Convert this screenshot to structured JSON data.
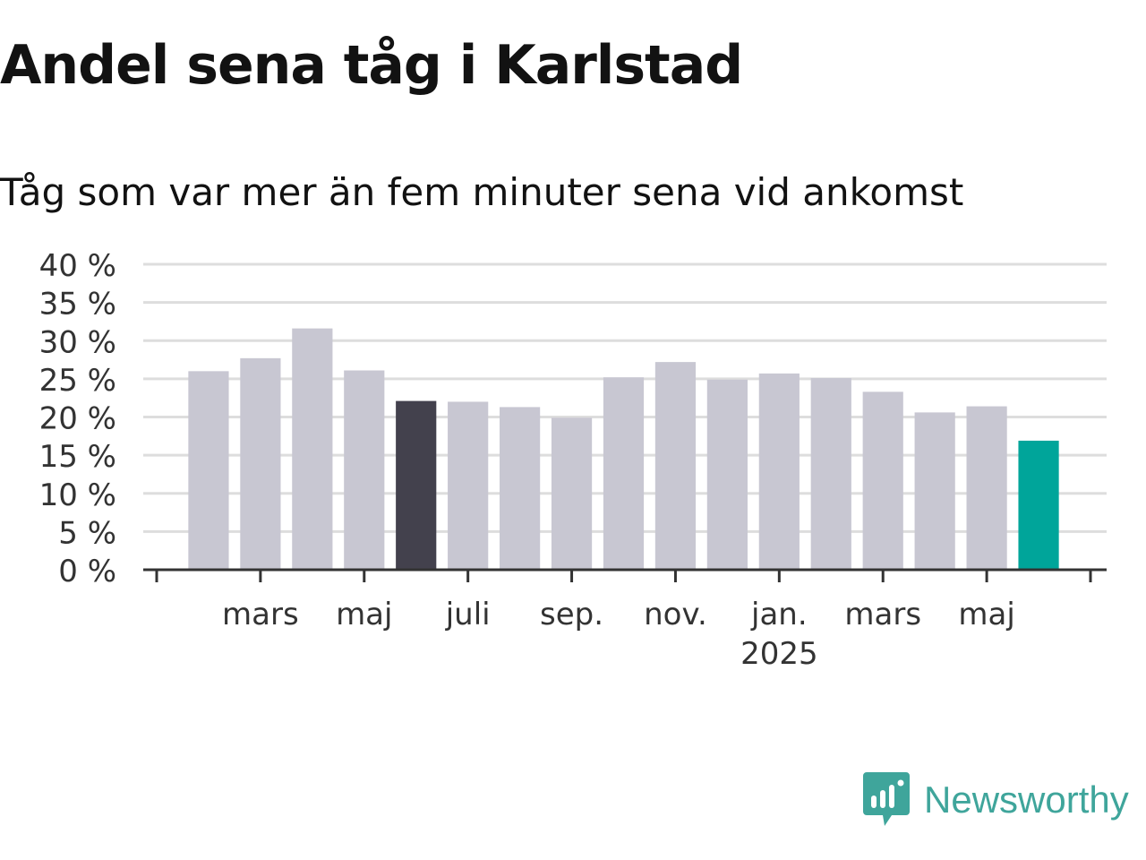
{
  "title": "Andel sena tåg i Karlstad",
  "subtitle": "Tåg som var mer än fem minuter sena vid ankomst",
  "brand": {
    "name": "Newsworthy",
    "color": "#3fa59b"
  },
  "colors": {
    "bar_default": "#c8c7d2",
    "bar_highlight_dark": "#43414d",
    "bar_highlight_latest": "#00a59a",
    "grid": "#dddddd",
    "axis": "#333333",
    "text": "#333333"
  },
  "chart_data": {
    "type": "bar",
    "title": "Andel sena tåg i Karlstad",
    "subtitle": "Tåg som var mer än fem minuter sena vid ankomst",
    "xlabel": "",
    "ylabel": "",
    "y_unit": "%",
    "ylim": [
      0,
      40
    ],
    "y_ticks": [
      0,
      5,
      10,
      15,
      20,
      25,
      30,
      35,
      40
    ],
    "y_tick_labels": [
      "0 %",
      "5 %",
      "10 %",
      "15 %",
      "20 %",
      "25 %",
      "30 %",
      "35 %",
      "40 %"
    ],
    "grid": true,
    "legend": "none",
    "categories": [
      "2024-02",
      "2024-03",
      "2024-04",
      "2024-05",
      "2024-06",
      "2024-07",
      "2024-08",
      "2024-09",
      "2024-10",
      "2024-11",
      "2024-12",
      "2025-01",
      "2025-02",
      "2025-03",
      "2025-04",
      "2025-05",
      "2025-06"
    ],
    "values": [
      26.0,
      27.7,
      31.6,
      26.1,
      22.1,
      22.0,
      21.3,
      19.9,
      25.2,
      27.2,
      24.9,
      25.7,
      25.1,
      23.3,
      20.6,
      21.4,
      16.9
    ],
    "highlights": {
      "2024-06": "dark",
      "2025-06": "latest"
    },
    "x_tick_labels": [
      {
        "category": "2024-03",
        "label": "mars"
      },
      {
        "category": "2024-05",
        "label": "maj"
      },
      {
        "category": "2024-07",
        "label": "juli"
      },
      {
        "category": "2024-09",
        "label": "sep."
      },
      {
        "category": "2024-11",
        "label": "nov."
      },
      {
        "category": "2025-01",
        "label": "jan.",
        "sublabel": "2025"
      },
      {
        "category": "2025-03",
        "label": "mars"
      },
      {
        "category": "2025-05",
        "label": "maj"
      }
    ]
  }
}
